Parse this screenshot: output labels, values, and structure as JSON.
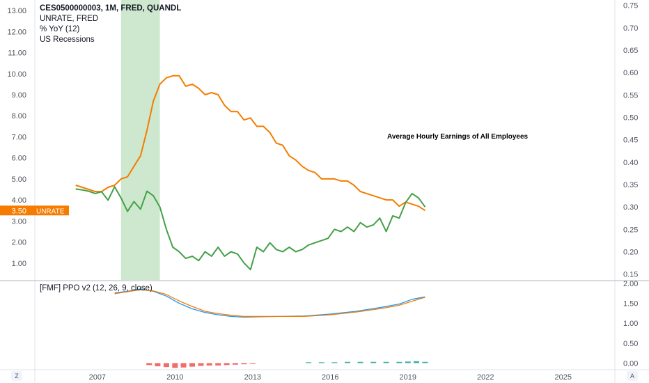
{
  "legend": {
    "symbol_line": "CES0500000003, 1M, FRED, QUANDL",
    "compare_line": "UNRATE, FRED",
    "transform_line": "% YoY (12)",
    "overlay_line": "US Recessions"
  },
  "annotation": "Average Hourly Earnings of All Employees",
  "price_badge": {
    "value": "3.50",
    "label": "UNRATE",
    "value_num": 3.5
  },
  "indicator": {
    "title": "[FMF] PPO v2 (12, 26, 9, close)"
  },
  "buttons": {
    "left": "Z",
    "right": "A"
  },
  "colors": {
    "background": "#ffffff",
    "unrate": "#f57c00",
    "earnings": "#43a047",
    "recession": "#c8e6c9",
    "ppo": "#2196f3",
    "signal": "#f57c00",
    "hist_negative": "#ef5350",
    "hist_positive": "#26a69a",
    "axis_text": "#50535e",
    "grid_border": "#e0e3eb"
  },
  "chart_data": [
    {
      "type": "line",
      "x_axis": {
        "type": "date",
        "range": [
          "2004-08-01",
          "2027-01-01"
        ],
        "ticks": [
          {
            "value": "2007-01-01",
            "label": "2007"
          },
          {
            "value": "2010-01-01",
            "label": "2010"
          },
          {
            "value": "2013-01-01",
            "label": "2013"
          },
          {
            "value": "2016-01-01",
            "label": "2016"
          },
          {
            "value": "2019-01-01",
            "label": "2019"
          },
          {
            "value": "2022-01-01",
            "label": "2022"
          },
          {
            "value": "2025-01-01",
            "label": "2025"
          }
        ]
      },
      "left_axis": {
        "range": [
          0.2,
          13.5
        ],
        "ticks": [
          "1.00",
          "2.00",
          "3.00",
          "4.00",
          "5.00",
          "6.00",
          "7.00",
          "8.00",
          "9.00",
          "10.00",
          "11.00",
          "12.00",
          "13.00"
        ]
      },
      "right_axis": {
        "range": [
          0.137,
          0.762
        ],
        "ticks": [
          "0.15",
          "0.20",
          "0.25",
          "0.30",
          "0.35",
          "0.40",
          "0.45",
          "0.50",
          "0.55",
          "0.60",
          "0.65",
          "0.70",
          "0.75"
        ]
      },
      "recession_band": {
        "start": "2007-12-01",
        "end": "2009-06-01"
      },
      "series": [
        {
          "axis": "left",
          "color": "#f57c00",
          "points": [
            [
              "2006-03-01",
              4.7
            ],
            [
              "2006-06-01",
              4.6
            ],
            [
              "2006-09-01",
              4.5
            ],
            [
              "2006-12-01",
              4.4
            ],
            [
              "2007-03-01",
              4.4
            ],
            [
              "2007-06-01",
              4.6
            ],
            [
              "2007-09-01",
              4.7
            ],
            [
              "2007-12-01",
              5.0
            ],
            [
              "2008-03-01",
              5.1
            ],
            [
              "2008-06-01",
              5.6
            ],
            [
              "2008-09-01",
              6.1
            ],
            [
              "2008-12-01",
              7.3
            ],
            [
              "2009-03-01",
              8.7
            ],
            [
              "2009-06-01",
              9.5
            ],
            [
              "2009-09-01",
              9.8
            ],
            [
              "2009-12-01",
              9.9
            ],
            [
              "2010-03-01",
              9.9
            ],
            [
              "2010-06-01",
              9.4
            ],
            [
              "2010-09-01",
              9.5
            ],
            [
              "2010-12-01",
              9.3
            ],
            [
              "2011-03-01",
              9.0
            ],
            [
              "2011-06-01",
              9.1
            ],
            [
              "2011-09-01",
              9.0
            ],
            [
              "2011-12-01",
              8.5
            ],
            [
              "2012-03-01",
              8.2
            ],
            [
              "2012-06-01",
              8.2
            ],
            [
              "2012-09-01",
              7.8
            ],
            [
              "2012-12-01",
              7.9
            ],
            [
              "2013-03-01",
              7.5
            ],
            [
              "2013-06-01",
              7.5
            ],
            [
              "2013-09-01",
              7.2
            ],
            [
              "2013-12-01",
              6.7
            ],
            [
              "2014-03-01",
              6.6
            ],
            [
              "2014-06-01",
              6.1
            ],
            [
              "2014-09-01",
              5.9
            ],
            [
              "2014-12-01",
              5.6
            ],
            [
              "2015-03-01",
              5.4
            ],
            [
              "2015-06-01",
              5.3
            ],
            [
              "2015-09-01",
              5.0
            ],
            [
              "2015-12-01",
              5.0
            ],
            [
              "2016-03-01",
              5.0
            ],
            [
              "2016-06-01",
              4.9
            ],
            [
              "2016-09-01",
              4.9
            ],
            [
              "2016-12-01",
              4.7
            ],
            [
              "2017-03-01",
              4.4
            ],
            [
              "2017-06-01",
              4.3
            ],
            [
              "2017-09-01",
              4.2
            ],
            [
              "2017-12-01",
              4.1
            ],
            [
              "2018-03-01",
              4.0
            ],
            [
              "2018-06-01",
              4.0
            ],
            [
              "2018-09-01",
              3.7
            ],
            [
              "2018-12-01",
              3.9
            ],
            [
              "2019-03-01",
              3.8
            ],
            [
              "2019-06-01",
              3.7
            ],
            [
              "2019-09-01",
              3.5
            ]
          ]
        },
        {
          "axis": "right",
          "color": "#43a047",
          "points": [
            [
              "2006-03-01",
              0.34
            ],
            [
              "2006-06-01",
              0.338
            ],
            [
              "2006-09-01",
              0.335
            ],
            [
              "2006-12-01",
              0.33
            ],
            [
              "2007-03-01",
              0.334
            ],
            [
              "2007-06-01",
              0.315
            ],
            [
              "2007-09-01",
              0.345
            ],
            [
              "2007-12-01",
              0.32
            ],
            [
              "2008-03-01",
              0.29
            ],
            [
              "2008-06-01",
              0.312
            ],
            [
              "2008-09-01",
              0.295
            ],
            [
              "2008-12-01",
              0.335
            ],
            [
              "2009-03-01",
              0.325
            ],
            [
              "2009-06-01",
              0.3
            ],
            [
              "2009-09-01",
              0.25
            ],
            [
              "2009-12-01",
              0.21
            ],
            [
              "2010-03-01",
              0.2
            ],
            [
              "2010-06-01",
              0.185
            ],
            [
              "2010-09-01",
              0.19
            ],
            [
              "2010-12-01",
              0.18
            ],
            [
              "2011-03-01",
              0.2
            ],
            [
              "2011-06-01",
              0.19
            ],
            [
              "2011-09-01",
              0.21
            ],
            [
              "2011-12-01",
              0.19
            ],
            [
              "2012-03-01",
              0.2
            ],
            [
              "2012-06-01",
              0.195
            ],
            [
              "2012-09-01",
              0.175
            ],
            [
              "2012-12-01",
              0.16
            ],
            [
              "2013-03-01",
              0.21
            ],
            [
              "2013-06-01",
              0.2
            ],
            [
              "2013-09-01",
              0.22
            ],
            [
              "2013-12-01",
              0.205
            ],
            [
              "2014-03-01",
              0.2
            ],
            [
              "2014-06-01",
              0.21
            ],
            [
              "2014-09-01",
              0.2
            ],
            [
              "2014-12-01",
              0.205
            ],
            [
              "2015-03-01",
              0.215
            ],
            [
              "2015-06-01",
              0.22
            ],
            [
              "2015-09-01",
              0.225
            ],
            [
              "2015-12-01",
              0.23
            ],
            [
              "2016-03-01",
              0.25
            ],
            [
              "2016-06-01",
              0.245
            ],
            [
              "2016-09-01",
              0.255
            ],
            [
              "2016-12-01",
              0.245
            ],
            [
              "2017-03-01",
              0.265
            ],
            [
              "2017-06-01",
              0.255
            ],
            [
              "2017-09-01",
              0.26
            ],
            [
              "2017-12-01",
              0.275
            ],
            [
              "2018-03-01",
              0.245
            ],
            [
              "2018-06-01",
              0.28
            ],
            [
              "2018-09-01",
              0.275
            ],
            [
              "2018-12-01",
              0.31
            ],
            [
              "2019-03-01",
              0.33
            ],
            [
              "2019-06-01",
              0.32
            ],
            [
              "2019-09-01",
              0.3
            ]
          ]
        }
      ]
    },
    {
      "type": "line",
      "y_axis": {
        "range": [
          -0.15,
          2.05
        ],
        "ticks": [
          "0.00",
          "0.50",
          "1.00",
          "1.50",
          "2.00"
        ]
      },
      "series": [
        {
          "color": "#2196f3",
          "points": [
            [
              "2007-09-01",
              1.76
            ],
            [
              "2008-03-01",
              1.8
            ],
            [
              "2008-09-01",
              1.86
            ],
            [
              "2009-03-01",
              1.8
            ],
            [
              "2009-09-01",
              1.68
            ],
            [
              "2010-03-01",
              1.5
            ],
            [
              "2010-09-01",
              1.36
            ],
            [
              "2011-03-01",
              1.27
            ],
            [
              "2011-09-01",
              1.21
            ],
            [
              "2012-03-01",
              1.17
            ],
            [
              "2012-09-01",
              1.15
            ],
            [
              "2013-03-01",
              1.16
            ],
            [
              "2014-01-01",
              1.17
            ],
            [
              "2015-01-01",
              1.18
            ],
            [
              "2016-01-01",
              1.23
            ],
            [
              "2017-01-01",
              1.3
            ],
            [
              "2018-01-01",
              1.4
            ],
            [
              "2018-09-01",
              1.48
            ],
            [
              "2019-03-01",
              1.6
            ],
            [
              "2019-09-01",
              1.66
            ]
          ]
        },
        {
          "color": "#f57c00",
          "points": [
            [
              "2007-09-01",
              1.74
            ],
            [
              "2008-03-01",
              1.79
            ],
            [
              "2008-09-01",
              1.84
            ],
            [
              "2009-03-01",
              1.81
            ],
            [
              "2009-09-01",
              1.72
            ],
            [
              "2010-03-01",
              1.56
            ],
            [
              "2010-09-01",
              1.42
            ],
            [
              "2011-03-01",
              1.3
            ],
            [
              "2011-09-01",
              1.24
            ],
            [
              "2012-03-01",
              1.2
            ],
            [
              "2012-09-01",
              1.17
            ],
            [
              "2013-03-01",
              1.17
            ],
            [
              "2014-01-01",
              1.17
            ],
            [
              "2015-01-01",
              1.17
            ],
            [
              "2016-01-01",
              1.21
            ],
            [
              "2017-01-01",
              1.28
            ],
            [
              "2018-01-01",
              1.37
            ],
            [
              "2018-09-01",
              1.45
            ],
            [
              "2019-03-01",
              1.55
            ],
            [
              "2019-09-01",
              1.65
            ]
          ]
        }
      ],
      "histogram": [
        {
          "x": "2009-01-01",
          "value": -0.05
        },
        {
          "x": "2009-05-01",
          "value": -0.08
        },
        {
          "x": "2009-09-01",
          "value": -0.1
        },
        {
          "x": "2010-01-01",
          "value": -0.12
        },
        {
          "x": "2010-05-01",
          "value": -0.11
        },
        {
          "x": "2010-09-01",
          "value": -0.09
        },
        {
          "x": "2011-01-01",
          "value": -0.07
        },
        {
          "x": "2011-05-01",
          "value": -0.06
        },
        {
          "x": "2011-09-01",
          "value": -0.06
        },
        {
          "x": "2012-01-01",
          "value": -0.05
        },
        {
          "x": "2012-05-01",
          "value": -0.04
        },
        {
          "x": "2012-09-01",
          "value": -0.03
        },
        {
          "x": "2013-01-01",
          "value": -0.02
        },
        {
          "x": "2015-03-01",
          "value": 0.02
        },
        {
          "x": "2015-09-01",
          "value": 0.02
        },
        {
          "x": "2016-03-01",
          "value": 0.02
        },
        {
          "x": "2016-09-01",
          "value": 0.03
        },
        {
          "x": "2017-03-01",
          "value": 0.03
        },
        {
          "x": "2017-09-01",
          "value": 0.03
        },
        {
          "x": "2018-03-01",
          "value": 0.03
        },
        {
          "x": "2018-09-01",
          "value": 0.03
        },
        {
          "x": "2019-01-01",
          "value": 0.04
        },
        {
          "x": "2019-05-01",
          "value": 0.05
        },
        {
          "x": "2019-09-01",
          "value": 0.03
        }
      ]
    }
  ]
}
